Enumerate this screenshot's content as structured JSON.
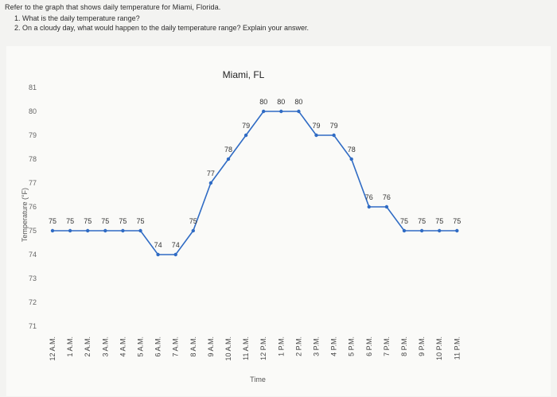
{
  "worksheet": {
    "intro": "Refer to the graph that shows daily temperature for Miami, Florida.",
    "questions": [
      "1. What is the daily temperature range?",
      "2. On a cloudy day, what would happen to the daily temperature range? Explain your answer."
    ]
  },
  "chart_data": {
    "type": "line",
    "title": "Miami, FL",
    "xlabel": "Time",
    "ylabel": "Temperature (°F)",
    "ylim": [
      71,
      81
    ],
    "yticks": [
      71,
      72,
      73,
      74,
      75,
      76,
      77,
      78,
      79,
      80,
      81
    ],
    "grid": false,
    "line_color": "#2f6bc4",
    "categories": [
      "12 A.M.",
      "1 A.M.",
      "2 A.M.",
      "3 A.M.",
      "4 A.M.",
      "5 A.M.",
      "6 A.M.",
      "7 A.M.",
      "8 A.M.",
      "9 A.M.",
      "10 A.M.",
      "11 A.M.",
      "12 P.M.",
      "1 P.M.",
      "2 P.M.",
      "3 P.M.",
      "4 P.M.",
      "5 P.M.",
      "6 P.M.",
      "7 P.M.",
      "8 P.M.",
      "9 P.M.",
      "10 P.M.",
      "11 P.M."
    ],
    "values": [
      75,
      75,
      75,
      75,
      75,
      75,
      74,
      74,
      75,
      77,
      78,
      79,
      80,
      80,
      80,
      79,
      79,
      78,
      76,
      76,
      75,
      75,
      75,
      75
    ]
  }
}
